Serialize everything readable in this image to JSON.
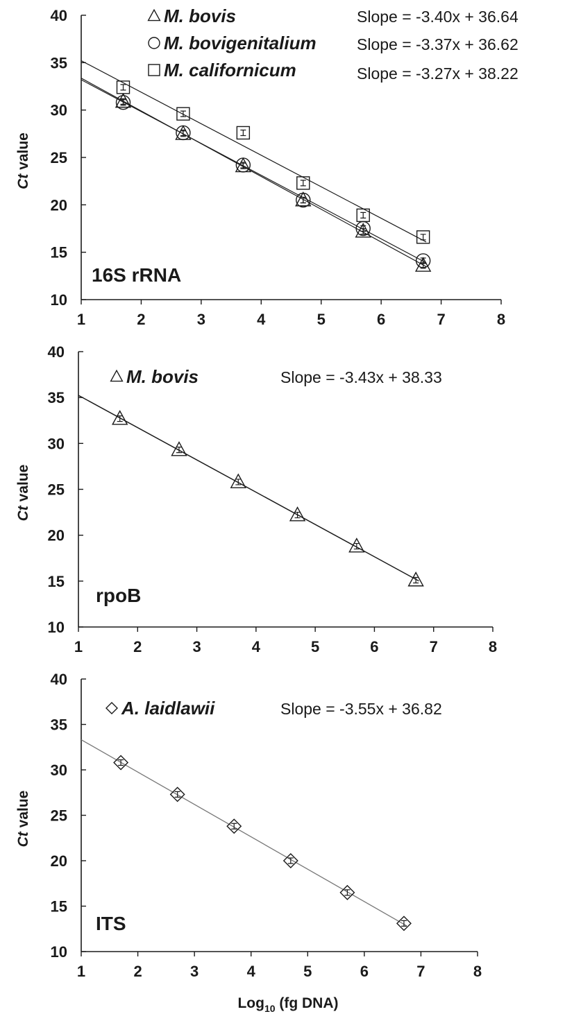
{
  "figure": {
    "xlabel": "Log10 (fg DNA)",
    "xlabel_base": "Log",
    "xlabel_sub": "10",
    "xlabel_rest": " (fg DNA)"
  },
  "chart_data": [
    {
      "type": "scatter",
      "panel_label": "16S rRNA",
      "ylabel_italic": "Ct",
      "ylabel_rest": " value",
      "xlim": [
        1,
        8
      ],
      "ylim": [
        10,
        40
      ],
      "x_ticks": [
        "1",
        "2",
        "3",
        "4",
        "5",
        "6",
        "7",
        "8"
      ],
      "y_ticks": [
        "10",
        "15",
        "20",
        "25",
        "30",
        "35",
        "40"
      ],
      "grid": false,
      "series": [
        {
          "name": "M. bovis",
          "marker": "triangle",
          "equation": "Slope = -3.40x + 36.64",
          "fit": {
            "slope": -3.4,
            "intercept": 36.64
          },
          "x": [
            1.7,
            2.7,
            3.7,
            4.7,
            5.7,
            6.7
          ],
          "y": [
            30.9,
            27.5,
            24.1,
            20.5,
            17.2,
            13.6
          ]
        },
        {
          "name": "M. bovigenitalium",
          "marker": "circle",
          "equation": "Slope = -3.37x + 36.62",
          "fit": {
            "slope": -3.37,
            "intercept": 36.62
          },
          "x": [
            1.7,
            2.7,
            3.7,
            4.7,
            5.7,
            6.7
          ],
          "y": [
            30.8,
            27.6,
            24.2,
            20.5,
            17.5,
            14.1
          ]
        },
        {
          "name": "M. californicum",
          "marker": "square",
          "equation": "Slope = -3.27x + 38.22",
          "fit": {
            "slope": -3.27,
            "intercept": 38.22
          },
          "x": [
            1.7,
            2.7,
            3.7,
            4.7,
            5.7,
            6.7
          ],
          "y": [
            32.4,
            29.6,
            27.6,
            22.3,
            18.9,
            16.6
          ]
        }
      ]
    },
    {
      "type": "scatter",
      "panel_label": "rpoB",
      "ylabel_italic": "Ct",
      "ylabel_rest": " value",
      "xlim": [
        1,
        8
      ],
      "ylim": [
        10,
        40
      ],
      "x_ticks": [
        "1",
        "2",
        "3",
        "4",
        "5",
        "6",
        "7",
        "8"
      ],
      "y_ticks": [
        "10",
        "15",
        "20",
        "25",
        "30",
        "35",
        "40"
      ],
      "grid": false,
      "series": [
        {
          "name": "M. bovis",
          "marker": "triangle",
          "equation": "Slope = -3.43x + 38.33",
          "fit": {
            "slope": -3.43,
            "intercept": 38.33
          },
          "x": [
            1.7,
            2.7,
            3.7,
            4.7,
            5.7,
            6.7
          ],
          "y": [
            32.7,
            29.3,
            25.8,
            22.2,
            18.8,
            15.1
          ]
        }
      ]
    },
    {
      "type": "scatter",
      "panel_label": "ITS",
      "ylabel_italic": "Ct",
      "ylabel_rest": " value",
      "xlim": [
        1,
        8
      ],
      "ylim": [
        10,
        40
      ],
      "x_ticks": [
        "1",
        "2",
        "3",
        "4",
        "5",
        "6",
        "7",
        "8"
      ],
      "y_ticks": [
        "10",
        "15",
        "20",
        "25",
        "30",
        "35",
        "40"
      ],
      "grid": false,
      "series": [
        {
          "name": "A. laidlawii",
          "marker": "diamond",
          "equation": "Slope = -3.55x + 36.82",
          "fit": {
            "slope": -3.55,
            "intercept": 36.82
          },
          "x": [
            1.7,
            2.7,
            3.7,
            4.7,
            5.7,
            6.7
          ],
          "y": [
            30.8,
            27.3,
            23.8,
            20.0,
            16.5,
            13.1
          ]
        }
      ]
    }
  ]
}
